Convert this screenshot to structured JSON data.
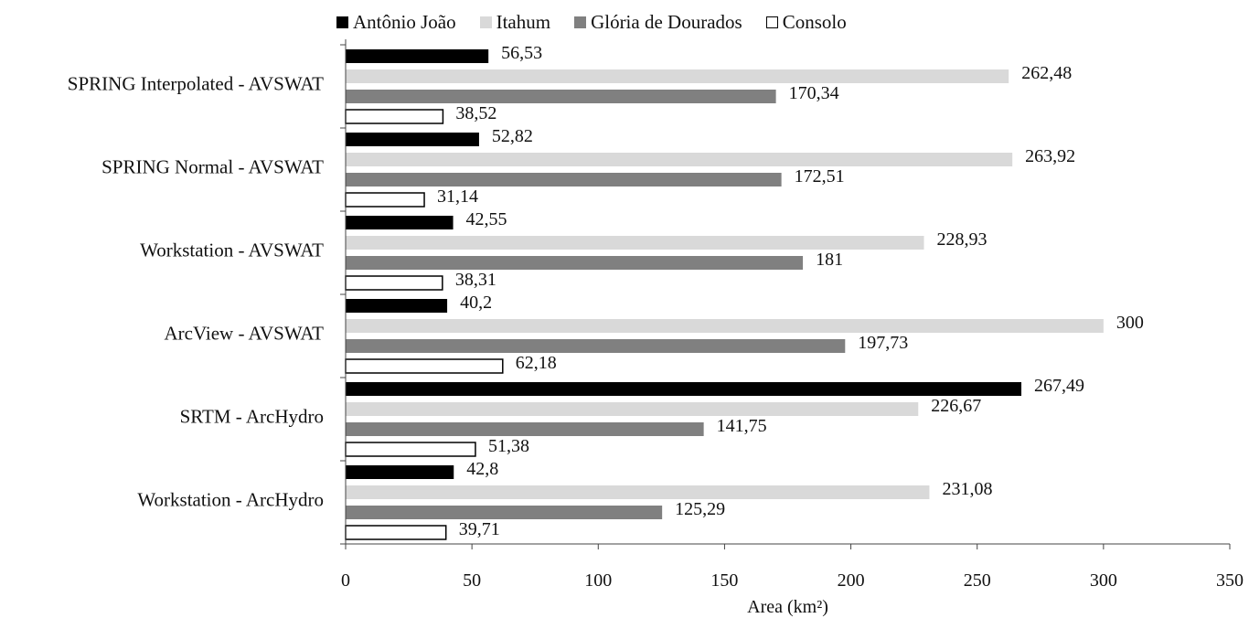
{
  "chart_data": {
    "type": "bar",
    "orientation": "horizontal",
    "title": "",
    "xlabel": "Area (km²)",
    "ylabel": "",
    "xlim": [
      0,
      350
    ],
    "xticks": [
      "0",
      "50",
      "100",
      "150",
      "200",
      "250",
      "300",
      "350"
    ],
    "legend_position": "top",
    "grid": false,
    "categories": [
      "SPRING Interpolated - AVSWAT",
      "SPRING Normal - AVSWAT",
      "Workstation - AVSWAT",
      "ArcView - AVSWAT",
      "SRTM - ArcHydro",
      "Workstation - ArcHydro"
    ],
    "series": [
      {
        "name": "Antônio João",
        "color": "#000000",
        "values": [
          56.53,
          52.82,
          42.55,
          40.2,
          267.49,
          42.8
        ],
        "labels": [
          "56,53",
          "52,82",
          "42,55",
          "40,2",
          "267,49",
          "42,8"
        ]
      },
      {
        "name": "Itahum",
        "color": "#d9d9d9",
        "values": [
          262.48,
          263.92,
          228.93,
          300,
          226.67,
          231.08
        ],
        "labels": [
          "262,48",
          "263,92",
          "228,93",
          "300",
          "226,67",
          "231,08"
        ]
      },
      {
        "name": "Glória de Dourados",
        "color": "#808080",
        "values": [
          170.34,
          172.51,
          181,
          197.73,
          141.75,
          125.29
        ],
        "labels": [
          "170,34",
          "172,51",
          "181",
          "197,73",
          "141,75",
          "125,29"
        ]
      },
      {
        "name": "Consolo",
        "color": "#ffffff",
        "values": [
          38.52,
          31.14,
          38.31,
          62.18,
          51.38,
          39.71
        ],
        "labels": [
          "38,52",
          "31,14",
          "38,31",
          "62,18",
          "51,38",
          "39,71"
        ]
      }
    ]
  }
}
